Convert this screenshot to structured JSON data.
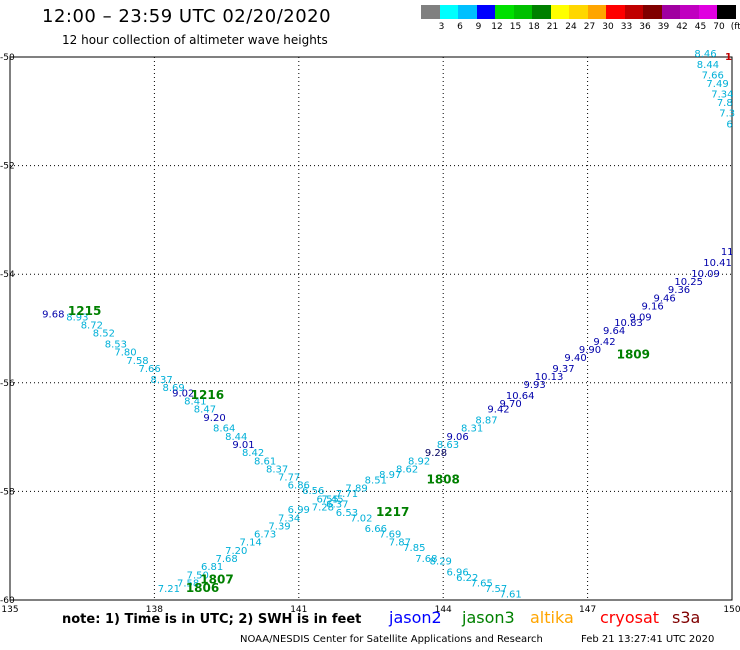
{
  "header": {
    "title": "12:00 – 23:59 UTC 02/20/2020",
    "subtitle": "12 hour collection of altimeter wave heights"
  },
  "legend": {
    "colors": [
      "#808080",
      "#00ffff",
      "#00c0ff",
      "#0000ff",
      "#00e000",
      "#00c000",
      "#008000",
      "#ffff00",
      "#ffd700",
      "#ffa500",
      "#ff0000",
      "#c00000",
      "#800000",
      "#a000a0",
      "#c000c0",
      "#e000e0",
      "#000000"
    ],
    "labels": [
      "3",
      "6",
      "9",
      "12",
      "15",
      "18",
      "21",
      "24",
      "27",
      "30",
      "33",
      "36",
      "39",
      "42",
      "45",
      "70",
      "(ft)"
    ]
  },
  "chart_data": {
    "type": "scatter",
    "xlim": [
      135,
      150
    ],
    "ylim": [
      -60,
      -50
    ],
    "x_ticks": [
      135,
      138,
      141,
      144,
      147,
      150
    ],
    "y_ticks": [
      -50,
      -52,
      -54,
      -56,
      -58,
      -60
    ],
    "x_tick_labels": [
      "135",
      "138",
      "141",
      "144",
      "147",
      "150"
    ],
    "y_tick_labels": [
      "-50",
      "-52",
      "-54",
      "-56",
      "-58",
      "-60"
    ],
    "grid": true,
    "series": [
      {
        "name": "jason3",
        "color": "#00b0d8",
        "points": [
          {
            "x": 135.9,
            "y": -54.8,
            "v": "9.68",
            "c": "#0000aa"
          },
          {
            "x": 136.4,
            "y": -54.85,
            "v": "8.93"
          },
          {
            "x": 136.7,
            "y": -55.0,
            "v": "8.72"
          },
          {
            "x": 136.95,
            "y": -55.15,
            "v": "8.52"
          },
          {
            "x": 137.2,
            "y": -55.35,
            "v": "8.53"
          },
          {
            "x": 137.4,
            "y": -55.5,
            "v": "7.80"
          },
          {
            "x": 137.65,
            "y": -55.65,
            "v": "7.58"
          },
          {
            "x": 137.9,
            "y": -55.8,
            "v": "7.66"
          },
          {
            "x": 138.15,
            "y": -56.0,
            "v": "8.37"
          },
          {
            "x": 138.4,
            "y": -56.15,
            "v": "8.69"
          },
          {
            "x": 138.6,
            "y": -56.25,
            "v": "9.02",
            "c": "#0000aa"
          },
          {
            "x": 138.85,
            "y": -56.4,
            "v": "8.41"
          },
          {
            "x": 139.05,
            "y": -56.55,
            "v": "8.47"
          },
          {
            "x": 139.25,
            "y": -56.7,
            "v": "9.20",
            "c": "#0000aa"
          },
          {
            "x": 139.45,
            "y": -56.9,
            "v": "8.64"
          },
          {
            "x": 139.7,
            "y": -57.05,
            "v": "8.44"
          },
          {
            "x": 139.85,
            "y": -57.2,
            "v": "9.01",
            "c": "#0000aa"
          },
          {
            "x": 140.05,
            "y": -57.35,
            "v": "8.42"
          },
          {
            "x": 140.3,
            "y": -57.5,
            "v": "8.61"
          },
          {
            "x": 140.55,
            "y": -57.65,
            "v": "8.37"
          },
          {
            "x": 140.8,
            "y": -57.8,
            "v": "7.77"
          },
          {
            "x": 141.0,
            "y": -57.95,
            "v": "6.86"
          },
          {
            "x": 141.3,
            "y": -58.05,
            "v": "6.56"
          },
          {
            "x": 141.6,
            "y": -58.2,
            "v": "6.55"
          },
          {
            "x": 141.8,
            "y": -58.3,
            "v": "6.37"
          },
          {
            "x": 142.0,
            "y": -58.45,
            "v": "6.53"
          },
          {
            "x": 142.3,
            "y": -58.55,
            "v": "7.02"
          },
          {
            "x": 142.6,
            "y": -58.75,
            "v": "6.66"
          },
          {
            "x": 142.9,
            "y": -58.85,
            "v": "7.69"
          },
          {
            "x": 143.1,
            "y": -59.0,
            "v": "7.87"
          },
          {
            "x": 143.4,
            "y": -59.1,
            "v": "7.85"
          },
          {
            "x": 143.65,
            "y": -59.3,
            "v": "7.68"
          },
          {
            "x": 143.95,
            "y": -59.35,
            "v": "8.29"
          },
          {
            "x": 144.3,
            "y": -59.55,
            "v": "6.96"
          },
          {
            "x": 144.5,
            "y": -59.65,
            "v": "6.22"
          },
          {
            "x": 144.8,
            "y": -59.75,
            "v": "7.65"
          },
          {
            "x": 145.1,
            "y": -59.85,
            "v": "7.57"
          },
          {
            "x": 145.4,
            "y": -59.95,
            "v": "7.61"
          },
          {
            "x": 138.3,
            "y": -59.85,
            "v": "7.21"
          },
          {
            "x": 138.7,
            "y": -59.75,
            "v": "7.58"
          },
          {
            "x": 138.9,
            "y": -59.6,
            "v": "7.50"
          },
          {
            "x": 139.2,
            "y": -59.45,
            "v": "6.81"
          },
          {
            "x": 139.5,
            "y": -59.3,
            "v": "7.68"
          },
          {
            "x": 139.7,
            "y": -59.15,
            "v": "7.20"
          },
          {
            "x": 140.0,
            "y": -59.0,
            "v": "7.14"
          },
          {
            "x": 140.3,
            "y": -58.85,
            "v": "6.73"
          },
          {
            "x": 140.6,
            "y": -58.7,
            "v": "7.39"
          },
          {
            "x": 140.8,
            "y": -58.55,
            "v": "7.34"
          },
          {
            "x": 141.0,
            "y": -58.4,
            "v": "6.99"
          },
          {
            "x": 141.5,
            "y": -58.35,
            "v": "7.28"
          },
          {
            "x": 141.7,
            "y": -58.2,
            "v": "7.45"
          },
          {
            "x": 142.0,
            "y": -58.1,
            "v": "7.71"
          },
          {
            "x": 142.2,
            "y": -58.0,
            "v": "7.89"
          },
          {
            "x": 142.6,
            "y": -57.85,
            "v": "8.51"
          },
          {
            "x": 142.9,
            "y": -57.75,
            "v": "8.97"
          },
          {
            "x": 143.25,
            "y": -57.65,
            "v": "8.62"
          },
          {
            "x": 143.5,
            "y": -57.5,
            "v": "8.92"
          },
          {
            "x": 143.85,
            "y": -57.35,
            "v": "9.28",
            "c": "#000060"
          },
          {
            "x": 144.1,
            "y": -57.2,
            "v": "8.63"
          },
          {
            "x": 144.3,
            "y": -57.05,
            "v": "9.06",
            "c": "#0000aa"
          },
          {
            "x": 144.6,
            "y": -56.9,
            "v": "8.31"
          },
          {
            "x": 144.9,
            "y": -56.75,
            "v": "8.87"
          },
          {
            "x": 145.15,
            "y": -56.55,
            "v": "9.42",
            "c": "#0000aa"
          },
          {
            "x": 145.4,
            "y": -56.45,
            "v": "9.70",
            "c": "#0000aa"
          },
          {
            "x": 145.6,
            "y": -56.3,
            "v": "10.64",
            "c": "#0000aa"
          },
          {
            "x": 145.9,
            "y": -56.1,
            "v": "9.93",
            "c": "#0000aa"
          },
          {
            "x": 146.2,
            "y": -55.95,
            "v": "10.13",
            "c": "#0000aa"
          },
          {
            "x": 146.5,
            "y": -55.8,
            "v": "9.37",
            "c": "#0000aa"
          },
          {
            "x": 146.75,
            "y": -55.6,
            "v": "9.40",
            "c": "#0000aa"
          },
          {
            "x": 147.05,
            "y": -55.45,
            "v": "9.90",
            "c": "#0000aa"
          },
          {
            "x": 147.35,
            "y": -55.3,
            "v": "9.42",
            "c": "#0000aa"
          },
          {
            "x": 147.55,
            "y": -55.1,
            "v": "9.64",
            "c": "#0000aa"
          },
          {
            "x": 147.85,
            "y": -54.95,
            "v": "10.83",
            "c": "#0000aa"
          },
          {
            "x": 148.1,
            "y": -54.85,
            "v": "9.09",
            "c": "#0000aa"
          },
          {
            "x": 148.35,
            "y": -54.65,
            "v": "9.16",
            "c": "#0000aa"
          },
          {
            "x": 148.6,
            "y": -54.5,
            "v": "9.46",
            "c": "#0000aa"
          },
          {
            "x": 148.9,
            "y": -54.35,
            "v": "9.36",
            "c": "#0000aa"
          },
          {
            "x": 149.1,
            "y": -54.2,
            "v": "10.25",
            "c": "#0000aa"
          },
          {
            "x": 149.45,
            "y": -54.05,
            "v": "10.09",
            "c": "#0000aa"
          },
          {
            "x": 149.7,
            "y": -53.85,
            "v": "10.41",
            "c": "#0000aa"
          },
          {
            "x": 149.9,
            "y": -53.65,
            "v": "11",
            "c": "#0000aa"
          },
          {
            "x": 149.45,
            "y": -50.0,
            "v": "8.46"
          },
          {
            "x": 149.5,
            "y": -50.2,
            "v": "8.44"
          },
          {
            "x": 149.6,
            "y": -50.4,
            "v": "7.66"
          },
          {
            "x": 149.7,
            "y": -50.55,
            "v": "7.49"
          },
          {
            "x": 149.8,
            "y": -50.75,
            "v": "7.34"
          },
          {
            "x": 149.85,
            "y": -50.9,
            "v": "7.8"
          },
          {
            "x": 149.9,
            "y": -51.1,
            "v": "7.3"
          },
          {
            "x": 149.95,
            "y": -51.3,
            "v": "6"
          }
        ]
      }
    ],
    "pass_labels": [
      {
        "x": 136.55,
        "y": -54.75,
        "text": "1215"
      },
      {
        "x": 139.1,
        "y": -56.3,
        "text": "1216"
      },
      {
        "x": 142.95,
        "y": -58.45,
        "text": "1217"
      },
      {
        "x": 144.0,
        "y": -57.85,
        "text": "1808"
      },
      {
        "x": 147.95,
        "y": -55.55,
        "text": "1809"
      },
      {
        "x": 139.3,
        "y": -59.7,
        "text": "1807"
      },
      {
        "x": 139.0,
        "y": -59.85,
        "text": "1806"
      }
    ]
  },
  "footer": {
    "note": "note:  1) Time is in UTC;  2) SWH is in feet",
    "satellites": [
      {
        "name": "jason2",
        "color": "#0000ff"
      },
      {
        "name": "jason3",
        "color": "#008000"
      },
      {
        "name": "altika",
        "color": "#ffa500"
      },
      {
        "name": "cryosat",
        "color": "#ff0000"
      },
      {
        "name": "s3a",
        "color": "#800000"
      }
    ],
    "credit": "NOAA/NESDIS Center for Satellite Applications and Research",
    "timestamp": "Feb 21 13:27:41 UTC 2020"
  }
}
